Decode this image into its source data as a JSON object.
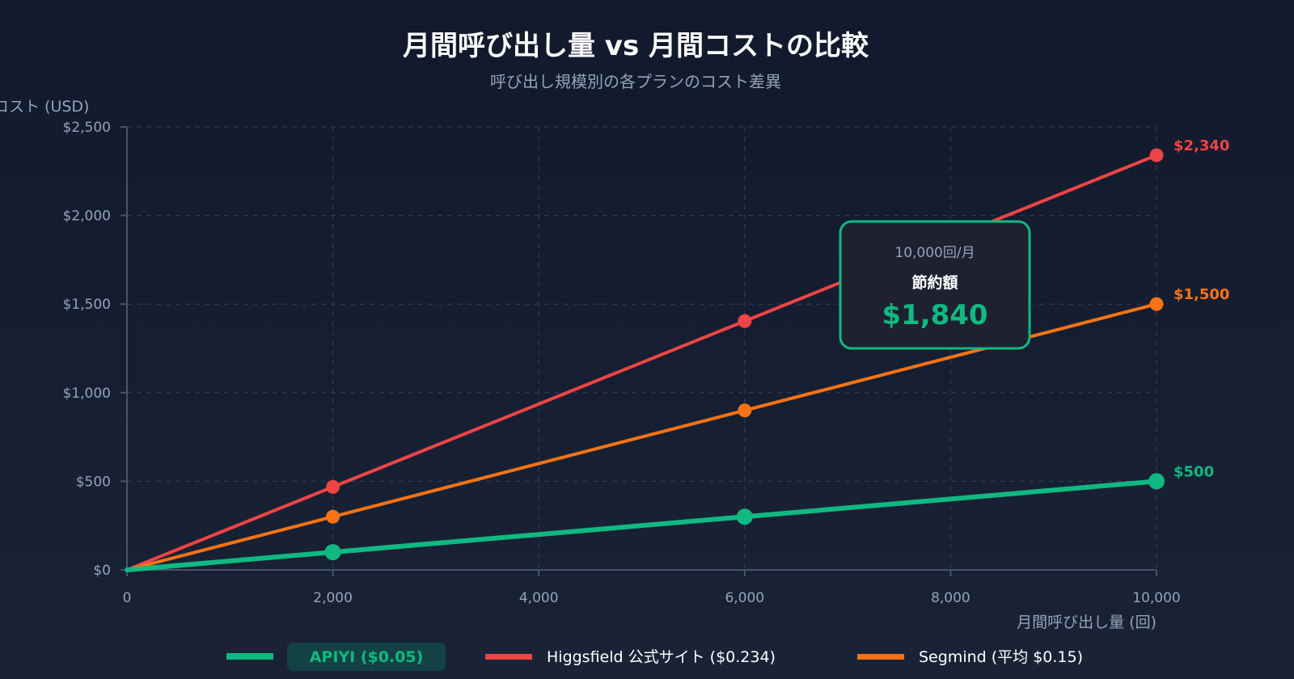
{
  "chart_data": {
    "type": "line",
    "title": "月間呼び出し量 vs 月間コストの比較",
    "subtitle": "呼び出し規模別の各プランのコスト差異",
    "xlabel": "月間呼び出し量 (回)",
    "ylabel": "コスト (USD)",
    "xlim": [
      0,
      10000
    ],
    "ylim": [
      0,
      2500
    ],
    "x_ticks": [
      "0",
      "2,000",
      "4,000",
      "6,000",
      "8,000",
      "10,000"
    ],
    "x_tick_values": [
      0,
      2000,
      4000,
      6000,
      8000,
      10000
    ],
    "y_ticks": [
      "$0",
      "$500",
      "$1,000",
      "$1,500",
      "$2,000",
      "$2,500"
    ],
    "y_tick_values": [
      0,
      500,
      1000,
      1500,
      2000,
      2500
    ],
    "grid": true,
    "x": [
      0,
      2000,
      6000,
      10000
    ],
    "series": [
      {
        "name": "Higgsfield 公式サイト ($0.234)",
        "color": "#ef4444",
        "values": [
          0,
          468,
          1404,
          2340
        ],
        "end_label": "$2,340"
      },
      {
        "name": "Segmind (平均 $0.15)",
        "color": "#f97316",
        "values": [
          0,
          300,
          900,
          1500
        ],
        "end_label": "$1,500"
      },
      {
        "name": "APIYI ($0.05)",
        "color": "#10b981",
        "values": [
          0,
          100,
          300,
          500
        ],
        "end_label": "$500"
      }
    ],
    "legend_placement": "bottom",
    "annotation": {
      "line1": "10,000回/月",
      "line2": "節約額",
      "value": "$1,840",
      "color": "#10b981"
    }
  }
}
